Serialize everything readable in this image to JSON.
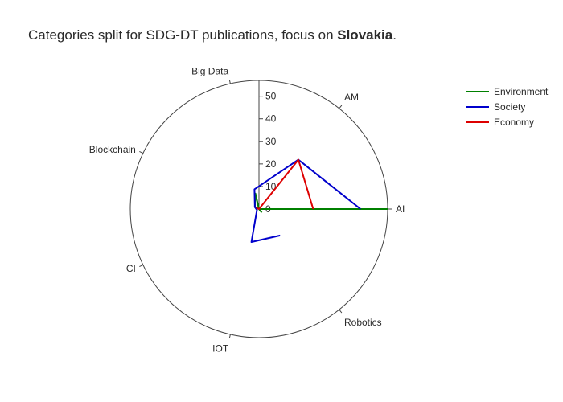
{
  "chart_data": {
    "type": "radar",
    "title_prefix": "Categories split for SDG-DT publications, focus on ",
    "title_bold": "Slovakia",
    "title_suffix": ".",
    "categories": [
      "AI",
      "AM",
      "Big Data",
      "Blockchain",
      "CI",
      "IOT",
      "Robotics"
    ],
    "radial_ticks": [
      0,
      10,
      20,
      30,
      40,
      50
    ],
    "radial_range": [
      0,
      57
    ],
    "series": [
      {
        "name": "Environment",
        "color": "#008000",
        "values": [
          57,
          0,
          7,
          2,
          0,
          0,
          2
        ]
      },
      {
        "name": "Society",
        "color": "#0000cc",
        "values": [
          45,
          28,
          9,
          2,
          1,
          15,
          15
        ]
      },
      {
        "name": "Economy",
        "color": "#dd0000",
        "values": [
          24,
          28,
          0,
          1,
          0,
          0,
          0
        ]
      }
    ],
    "legend_position": "top-right"
  }
}
